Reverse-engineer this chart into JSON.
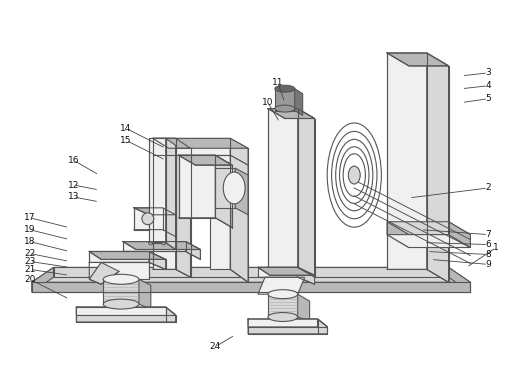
{
  "background_color": "#ffffff",
  "line_color": "#555555",
  "lw": 0.8,
  "face_light": "#f0f0f0",
  "face_mid": "#d8d8d8",
  "face_dark": "#b8b8b8",
  "face_darker": "#999999",
  "labels": [
    [
      "1",
      498,
      248,
      468,
      268
    ],
    [
      "2",
      490,
      188,
      410,
      198
    ],
    [
      "3",
      490,
      72,
      463,
      75
    ],
    [
      "4",
      490,
      85,
      463,
      88
    ],
    [
      "5",
      490,
      98,
      463,
      102
    ],
    [
      "7",
      490,
      235,
      422,
      230
    ],
    [
      "6",
      490,
      245,
      425,
      243
    ],
    [
      "8",
      490,
      255,
      428,
      252
    ],
    [
      "9",
      490,
      265,
      432,
      260
    ],
    [
      "10",
      268,
      102,
      280,
      122
    ],
    [
      "11",
      278,
      82,
      285,
      102
    ],
    [
      "12",
      72,
      185,
      98,
      190
    ],
    [
      "13",
      72,
      197,
      98,
      202
    ],
    [
      "14",
      125,
      128,
      165,
      148
    ],
    [
      "15",
      125,
      140,
      165,
      160
    ],
    [
      "16",
      72,
      160,
      98,
      175
    ],
    [
      "17",
      28,
      218,
      68,
      228
    ],
    [
      "19",
      28,
      230,
      68,
      240
    ],
    [
      "18",
      28,
      242,
      68,
      252
    ],
    [
      "22",
      28,
      254,
      68,
      262
    ],
    [
      "23",
      28,
      262,
      68,
      268
    ],
    [
      "21",
      28,
      270,
      68,
      276
    ],
    [
      "20",
      28,
      280,
      68,
      300
    ],
    [
      "24",
      215,
      348,
      235,
      336
    ]
  ]
}
